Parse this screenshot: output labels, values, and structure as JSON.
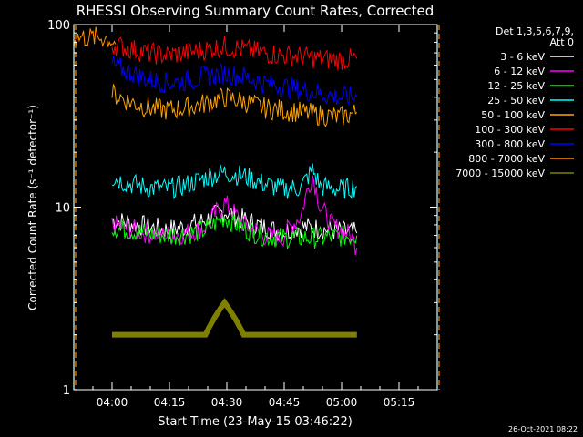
{
  "chart_data": {
    "type": "line",
    "title": "RHESSI Observing Summary Count Rates, Corrected",
    "xlabel": "Start Time (23-May-15 03:46:22)",
    "ylabel": "Corrected Count Rate (s⁻¹ detector⁻¹)",
    "y_scale": "log",
    "ylim": [
      1,
      100
    ],
    "xlim_minutes": [
      3.6,
      98.6
    ],
    "x_ticks": [
      {
        "label": "04:00",
        "minutes": 13.6
      },
      {
        "label": "04:15",
        "minutes": 28.6
      },
      {
        "label": "04:30",
        "minutes": 43.6
      },
      {
        "label": "04:45",
        "minutes": 58.6
      },
      {
        "label": "05:00",
        "minutes": 73.6
      },
      {
        "label": "05:15",
        "minutes": 88.6
      }
    ],
    "y_ticks": [
      {
        "label": "1",
        "value": 1
      },
      {
        "label": "10",
        "value": 10
      },
      {
        "label": "100",
        "value": 100
      }
    ],
    "legend": {
      "header": [
        "Det 1,3,5,6,7,9,",
        "Att 0"
      ],
      "placement": "right"
    },
    "series": [
      {
        "name": "3 - 6 keV",
        "color": "#ffffff",
        "x": [
          13.6,
          18,
          23,
          28,
          33,
          38,
          43,
          48,
          53,
          58,
          63,
          68,
          73,
          77.6
        ],
        "y": [
          8.5,
          8.2,
          7.8,
          7.5,
          7.8,
          8.5,
          9.5,
          8.5,
          7.8,
          7.3,
          7.8,
          7.6,
          7.4,
          7.2
        ]
      },
      {
        "name": "6 - 12 keV",
        "color": "#ff00ff",
        "x": [
          13.6,
          18,
          23,
          28,
          33,
          38,
          43,
          48,
          53,
          58,
          63,
          66,
          68,
          71,
          73,
          76,
          77.6
        ],
        "y": [
          8,
          7.6,
          7.2,
          7,
          7.2,
          7.8,
          10.5,
          8,
          7,
          6.8,
          9,
          15,
          10,
          8,
          7.6,
          7,
          6
        ]
      },
      {
        "name": "12 - 25 keV",
        "color": "#00ff00",
        "x": [
          13.6,
          18,
          23,
          28,
          33,
          38,
          43,
          48,
          53,
          58,
          63,
          68,
          73,
          77.6
        ],
        "y": [
          7.8,
          7.5,
          7.2,
          7,
          7.1,
          7.5,
          8.8,
          7.6,
          7,
          6.8,
          6.8,
          6.8,
          6.9,
          7
        ]
      },
      {
        "name": "25 - 50 keV",
        "color": "#00ffff",
        "x": [
          13.6,
          18,
          23,
          28,
          33,
          38,
          43,
          48,
          53,
          58,
          63,
          66,
          68,
          73,
          77.6
        ],
        "y": [
          14.5,
          13.5,
          12.8,
          12.6,
          13.2,
          14.5,
          15.5,
          14.8,
          13.5,
          12.6,
          12.8,
          16,
          13,
          12.5,
          13
        ]
      },
      {
        "name": "50 - 100 keV",
        "color": "#ffa500",
        "x": [
          13.6,
          18,
          23,
          28,
          33,
          38,
          43,
          48,
          53,
          58,
          63,
          68,
          73,
          77.6
        ],
        "y": [
          42,
          38,
          35,
          34,
          35,
          37,
          40,
          38,
          35,
          34,
          33,
          32,
          31,
          33
        ]
      },
      {
        "name": "100 - 300 keV",
        "color": "#ff0000",
        "x": [
          13.6,
          18,
          23,
          28,
          33,
          38,
          43,
          48,
          53,
          58,
          63,
          68,
          73,
          77.6
        ],
        "y": [
          78,
          74,
          70,
          68,
          70,
          73,
          76,
          73,
          70,
          68,
          67,
          65,
          64,
          65
        ]
      },
      {
        "name": "300 - 800 keV",
        "color": "#0000ff",
        "x": [
          13.6,
          18,
          23,
          28,
          33,
          38,
          43,
          48,
          53,
          58,
          63,
          68,
          73,
          77.6
        ],
        "y": [
          60,
          55,
          50,
          48,
          49,
          52,
          54,
          52,
          48,
          46,
          44,
          42,
          40,
          40
        ]
      },
      {
        "name": "800 - 7000 keV",
        "color": "#ff8c00",
        "x": [
          3.6,
          11.5,
          13.6,
          14.5
        ],
        "y": [
          85,
          85,
          82,
          78
        ]
      },
      {
        "name": "7000 - 15000 keV",
        "color": "#808000",
        "x": [
          13.6,
          18,
          23,
          28,
          33,
          38,
          43,
          48,
          53,
          58,
          63,
          68,
          73,
          77.6
        ],
        "y": [
          2,
          2,
          2,
          2,
          2,
          2,
          3,
          2,
          2,
          2,
          2,
          2,
          2,
          2
        ]
      }
    ],
    "markers": [
      {
        "color": "#00ffff",
        "minutes": [
          3.6,
          98.6
        ]
      },
      {
        "color": "#ff8c00",
        "minutes": [
          3.6,
          98.6
        ]
      }
    ],
    "grid": false
  },
  "footer_date": "26-Oct-2021 08:22"
}
